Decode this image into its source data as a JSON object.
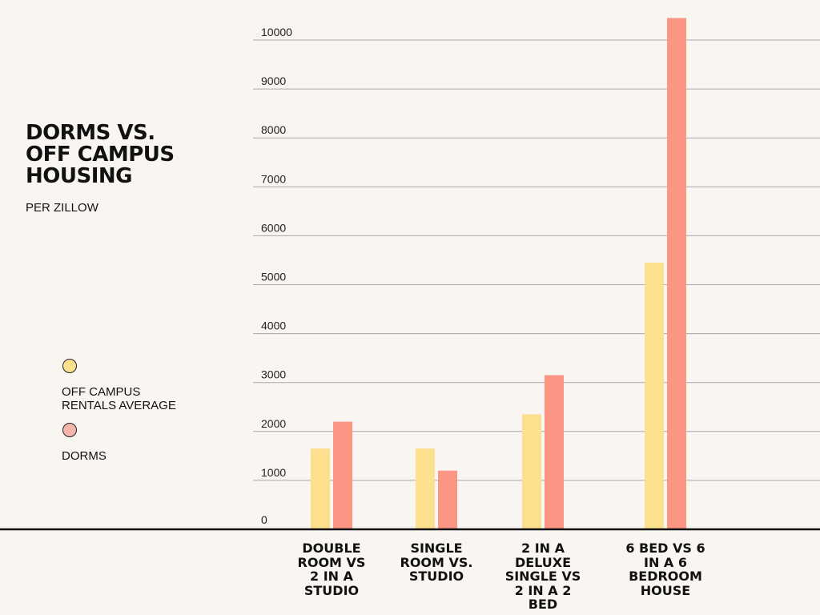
{
  "title": "DORMS VS.\nOFF CAMPUS\nHOUSING",
  "subtitle": "PER ZILLOW",
  "legend": [
    {
      "label": "OFF CAMPUS\nRENTALS AVERAGE",
      "color": "#fde08e"
    },
    {
      "label": "DORMS",
      "color": "#f7b5ab"
    }
  ],
  "chart_data": {
    "type": "bar",
    "categories": [
      "DOUBLE\nROOM VS\n2 IN A\nSTUDIO",
      "SINGLE\nROOM VS.\nSTUDIO",
      "2 IN A\nDELUXE\nSINGLE VS\n2 IN A 2\nBED",
      "6 BED VS 6\nIN A 6\nBEDROOM\nHOUSE"
    ],
    "series": [
      {
        "name": "OFF CAMPUS RENTALS AVERAGE",
        "color": "#fde08e",
        "values": [
          1650,
          1650,
          2350,
          5450
        ]
      },
      {
        "name": "DORMS",
        "color": "#fd9585",
        "values": [
          2200,
          1200,
          3150,
          10450
        ]
      }
    ],
    "yticks": [
      0,
      1000,
      2000,
      3000,
      4000,
      5000,
      6000,
      7000,
      8000,
      9000,
      10000
    ],
    "ylim": [
      0,
      10000
    ],
    "grid": true
  }
}
